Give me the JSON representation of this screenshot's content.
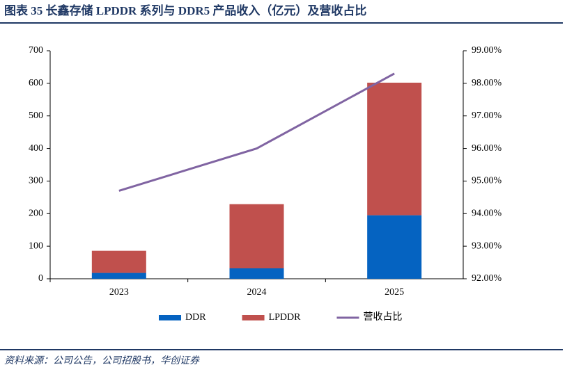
{
  "chart_data": {
    "type": "bar",
    "title": "图表 35   长鑫存储 LPDDR 系列与 DDR5 产品收入（亿元）及营收占比",
    "source": "资料来源：公司公告，公司招股书，华创证券",
    "categories": [
      "2023",
      "2024",
      "2025"
    ],
    "series": [
      {
        "name": "DDR",
        "color": "#0563c1",
        "values": [
          18,
          32,
          195
        ]
      },
      {
        "name": "LPDDR",
        "color": "#c0504d",
        "values": [
          68,
          197,
          407
        ]
      },
      {
        "name": "营收占比",
        "color": "#8064a2",
        "type": "line",
        "axis": "y2",
        "values": [
          94.7,
          96.0,
          98.3
        ]
      }
    ],
    "stacked": true,
    "ylim": [
      0,
      700
    ],
    "yticks": [
      0,
      100,
      200,
      300,
      400,
      500,
      600,
      700
    ],
    "y2lim": [
      92,
      99
    ],
    "y2ticks": [
      {
        "value": 92,
        "label": "92.00%"
      },
      {
        "value": 93,
        "label": "93.00%"
      },
      {
        "value": 94,
        "label": "94.00%"
      },
      {
        "value": 95,
        "label": "95.00%"
      },
      {
        "value": 96,
        "label": "96.00%"
      },
      {
        "value": 97,
        "label": "97.00%"
      },
      {
        "value": 98,
        "label": "98.00%"
      },
      {
        "value": 99,
        "label": "99.00%"
      }
    ],
    "legend": "bottom"
  }
}
